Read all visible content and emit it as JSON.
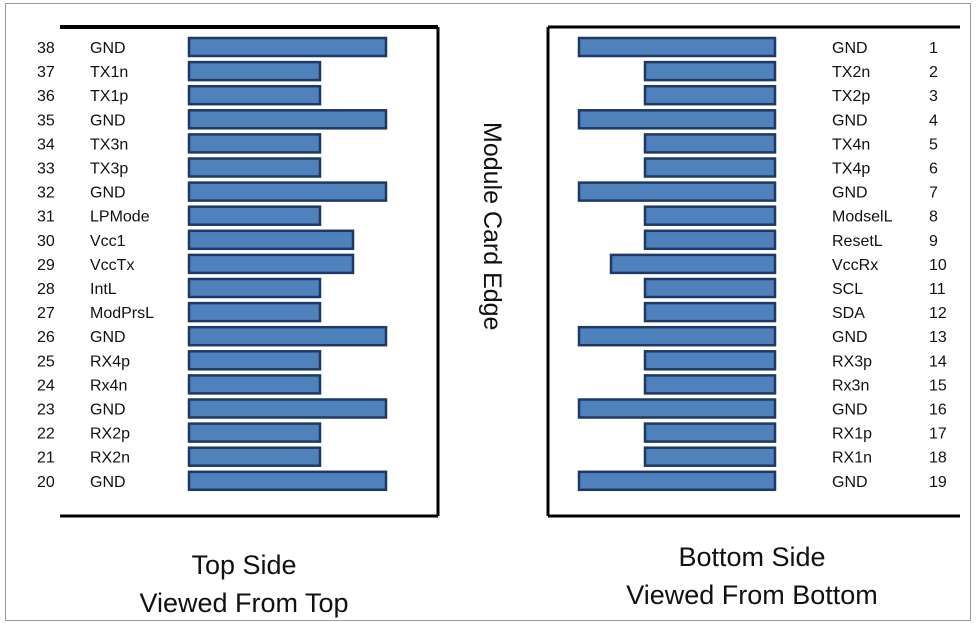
{
  "colors": {
    "pad_fill": "#4f81bd",
    "pad_stroke": "#1f3864",
    "board_line": "#000000"
  },
  "edge_label": "Module Card Edge",
  "top_side": {
    "caption_line1": "Top Side",
    "caption_line2": "Viewed From Top",
    "pins": [
      {
        "num": "38",
        "name": "GND",
        "length": "long"
      },
      {
        "num": "37",
        "name": "TX1n",
        "length": "short"
      },
      {
        "num": "36",
        "name": "TX1p",
        "length": "short"
      },
      {
        "num": "35",
        "name": "GND",
        "length": "long"
      },
      {
        "num": "34",
        "name": "TX3n",
        "length": "short"
      },
      {
        "num": "33",
        "name": "TX3p",
        "length": "short"
      },
      {
        "num": "32",
        "name": "GND",
        "length": "long"
      },
      {
        "num": "31",
        "name": "LPMode",
        "length": "short"
      },
      {
        "num": "30",
        "name": "Vcc1",
        "length": "medium"
      },
      {
        "num": "29",
        "name": "VccTx",
        "length": "medium"
      },
      {
        "num": "28",
        "name": "IntL",
        "length": "short"
      },
      {
        "num": "27",
        "name": "ModPrsL",
        "length": "short"
      },
      {
        "num": "26",
        "name": "GND",
        "length": "long"
      },
      {
        "num": "25",
        "name": "RX4p",
        "length": "short"
      },
      {
        "num": "24",
        "name": "Rx4n",
        "length": "short"
      },
      {
        "num": "23",
        "name": "GND",
        "length": "long"
      },
      {
        "num": "22",
        "name": "RX2p",
        "length": "short"
      },
      {
        "num": "21",
        "name": "RX2n",
        "length": "short"
      },
      {
        "num": "20",
        "name": "GND",
        "length": "long"
      }
    ]
  },
  "bottom_side": {
    "caption_line1": "Bottom Side",
    "caption_line2": "Viewed From Bottom",
    "pins": [
      {
        "num": "1",
        "name": "GND",
        "length": "long"
      },
      {
        "num": "2",
        "name": "TX2n",
        "length": "short"
      },
      {
        "num": "3",
        "name": "TX2p",
        "length": "short"
      },
      {
        "num": "4",
        "name": "GND",
        "length": "long"
      },
      {
        "num": "5",
        "name": "TX4n",
        "length": "short"
      },
      {
        "num": "6",
        "name": "TX4p",
        "length": "short"
      },
      {
        "num": "7",
        "name": "GND",
        "length": "long"
      },
      {
        "num": "8",
        "name": "ModselL",
        "length": "short"
      },
      {
        "num": "9",
        "name": "ResetL",
        "length": "short"
      },
      {
        "num": "10",
        "name": "VccRx",
        "length": "medium"
      },
      {
        "num": "11",
        "name": "SCL",
        "length": "short"
      },
      {
        "num": "12",
        "name": "SDA",
        "length": "short"
      },
      {
        "num": "13",
        "name": "GND",
        "length": "long"
      },
      {
        "num": "14",
        "name": "RX3p",
        "length": "short"
      },
      {
        "num": "15",
        "name": "Rx3n",
        "length": "short"
      },
      {
        "num": "16",
        "name": "GND",
        "length": "long"
      },
      {
        "num": "17",
        "name": "RX1p",
        "length": "short"
      },
      {
        "num": "18",
        "name": "RX1n",
        "length": "short"
      },
      {
        "num": "19",
        "name": "GND",
        "length": "long"
      }
    ]
  }
}
